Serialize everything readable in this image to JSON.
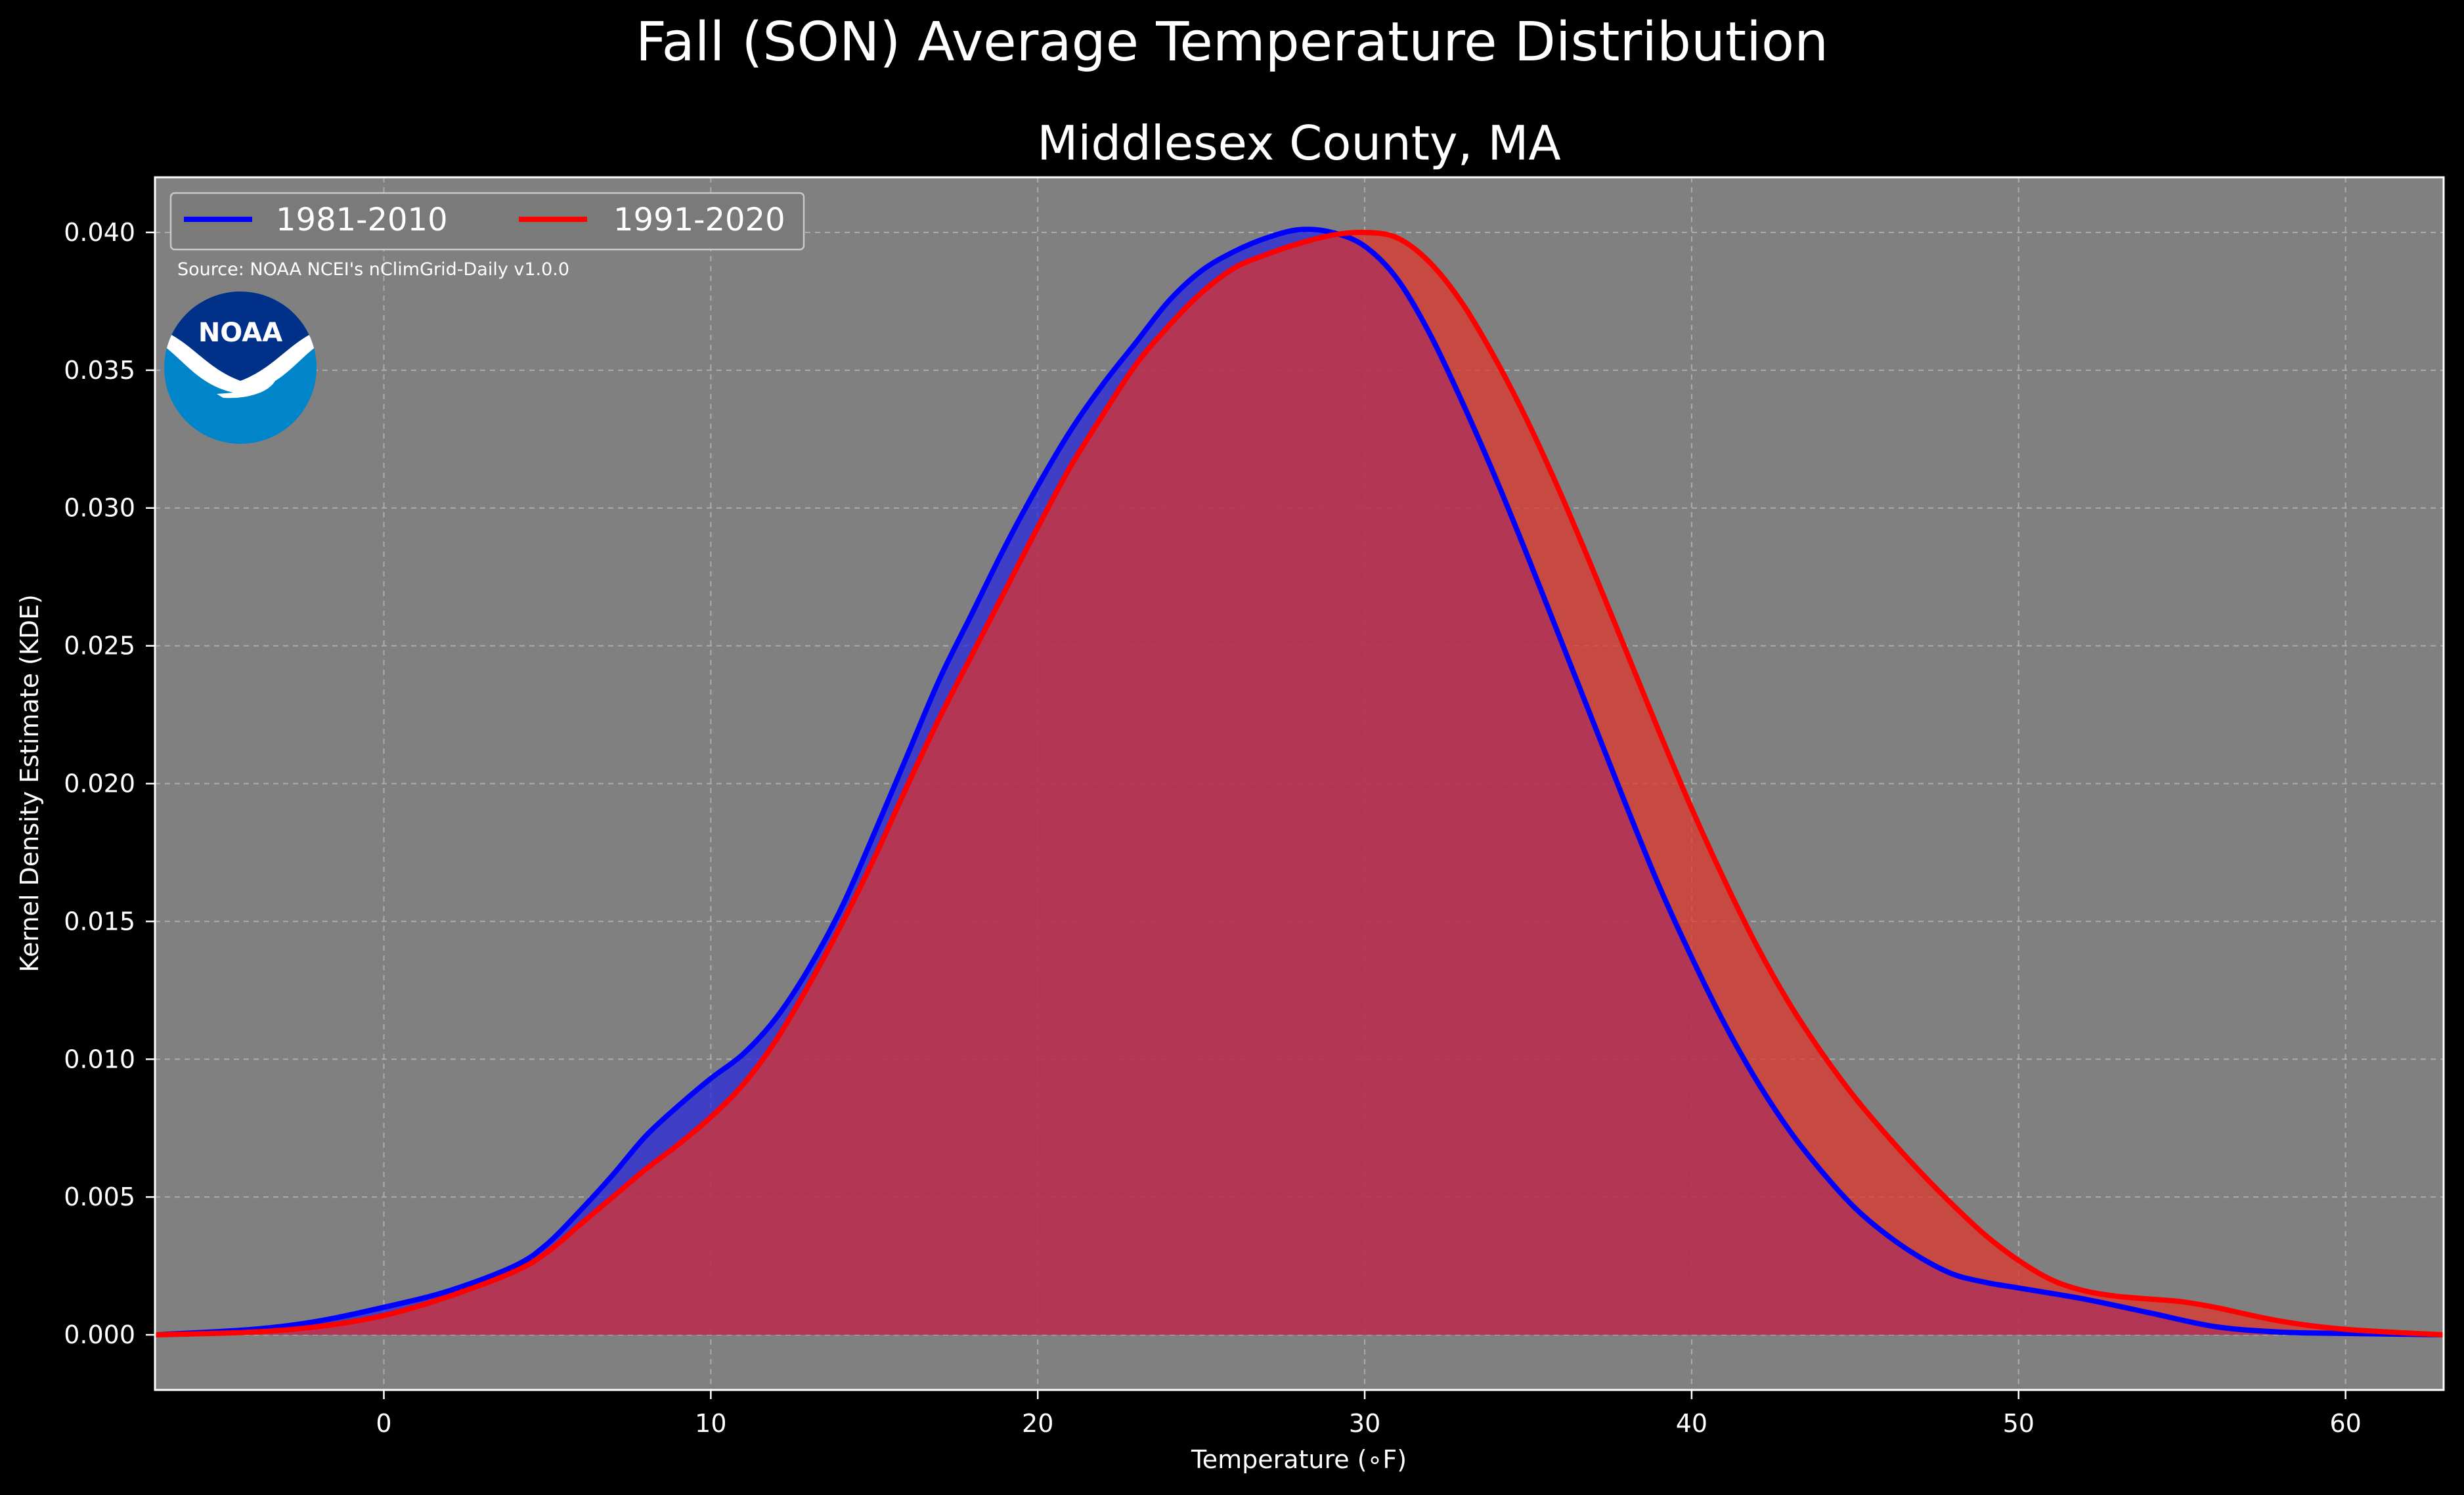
{
  "chart_data": {
    "type": "area",
    "title": "Fall (SON) Average Temperature Distribution",
    "subtitle": "Middlesex County, MA",
    "xlabel": "Temperature (∘F)",
    "ylabel": "Kernel Density Estimate (KDE)",
    "xlim": [
      -7,
      63
    ],
    "ylim": [
      -0.002,
      0.042
    ],
    "xticks": [
      0,
      10,
      20,
      30,
      40,
      50,
      60
    ],
    "yticks": [
      0.0,
      0.005,
      0.01,
      0.015,
      0.02,
      0.025,
      0.03,
      0.035,
      0.04
    ],
    "ytick_labels": [
      "0.000",
      "0.005",
      "0.010",
      "0.015",
      "0.020",
      "0.025",
      "0.030",
      "0.035",
      "0.040"
    ],
    "grid": true,
    "legend_position": "top-left",
    "annotation": "Source: NOAA NCEI's nClimGrid-Daily v1.0.0",
    "logo_text": "NOAA",
    "series": [
      {
        "name": "1981-2010",
        "color": "#0000ff",
        "fill_color": "#2626e0",
        "points": [
          [
            -7,
            0.0
          ],
          [
            -4,
            0.0002
          ],
          [
            -2,
            0.0005
          ],
          [
            0,
            0.001
          ],
          [
            2,
            0.0016
          ],
          [
            4,
            0.0025
          ],
          [
            5,
            0.0033
          ],
          [
            6,
            0.0045
          ],
          [
            7,
            0.0058
          ],
          [
            8,
            0.0072
          ],
          [
            9,
            0.0083
          ],
          [
            10,
            0.0093
          ],
          [
            11,
            0.0102
          ],
          [
            12,
            0.0115
          ],
          [
            13,
            0.0133
          ],
          [
            14,
            0.0155
          ],
          [
            15,
            0.0182
          ],
          [
            16,
            0.021
          ],
          [
            17,
            0.0238
          ],
          [
            18,
            0.0262
          ],
          [
            19,
            0.0286
          ],
          [
            20,
            0.0308
          ],
          [
            21,
            0.0328
          ],
          [
            22,
            0.0345
          ],
          [
            23,
            0.036
          ],
          [
            24,
            0.0375
          ],
          [
            25,
            0.0386
          ],
          [
            26,
            0.0393
          ],
          [
            27,
            0.0398
          ],
          [
            28,
            0.0401
          ],
          [
            29,
            0.04
          ],
          [
            30,
            0.0395
          ],
          [
            31,
            0.0383
          ],
          [
            32,
            0.0363
          ],
          [
            33,
            0.0338
          ],
          [
            34,
            0.0311
          ],
          [
            35,
            0.0282
          ],
          [
            36,
            0.0252
          ],
          [
            37,
            0.0222
          ],
          [
            38,
            0.0192
          ],
          [
            39,
            0.0163
          ],
          [
            40,
            0.0137
          ],
          [
            41,
            0.0113
          ],
          [
            42,
            0.0092
          ],
          [
            43,
            0.0074
          ],
          [
            44,
            0.0059
          ],
          [
            45,
            0.0046
          ],
          [
            46,
            0.0036
          ],
          [
            47,
            0.0028
          ],
          [
            48,
            0.0022
          ],
          [
            49,
            0.0019
          ],
          [
            50,
            0.0017
          ],
          [
            52,
            0.0013
          ],
          [
            54,
            0.0008
          ],
          [
            56,
            0.0003
          ],
          [
            58,
            0.0001
          ],
          [
            60,
            5e-05
          ],
          [
            63,
            0.0
          ]
        ]
      },
      {
        "name": "1991-2020",
        "color": "#ff0000",
        "fill_color": "#e0332a",
        "points": [
          [
            -7,
            0.0
          ],
          [
            -4,
            0.0001
          ],
          [
            -2,
            0.0003
          ],
          [
            0,
            0.0007
          ],
          [
            2,
            0.0014
          ],
          [
            4,
            0.0023
          ],
          [
            5,
            0.003
          ],
          [
            6,
            0.004
          ],
          [
            7,
            0.005
          ],
          [
            8,
            0.006
          ],
          [
            9,
            0.0069
          ],
          [
            10,
            0.0079
          ],
          [
            11,
            0.0091
          ],
          [
            12,
            0.0107
          ],
          [
            13,
            0.0127
          ],
          [
            14,
            0.0149
          ],
          [
            15,
            0.0173
          ],
          [
            16,
            0.0199
          ],
          [
            17,
            0.0224
          ],
          [
            18,
            0.0247
          ],
          [
            19,
            0.027
          ],
          [
            20,
            0.0293
          ],
          [
            21,
            0.0315
          ],
          [
            22,
            0.0334
          ],
          [
            23,
            0.0352
          ],
          [
            24,
            0.0366
          ],
          [
            25,
            0.0378
          ],
          [
            26,
            0.0387
          ],
          [
            27,
            0.0392
          ],
          [
            28,
            0.0396
          ],
          [
            29,
            0.0399
          ],
          [
            30,
            0.04
          ],
          [
            31,
            0.0398
          ],
          [
            32,
            0.0389
          ],
          [
            33,
            0.0374
          ],
          [
            34,
            0.0354
          ],
          [
            35,
            0.0331
          ],
          [
            36,
            0.0305
          ],
          [
            37,
            0.0277
          ],
          [
            38,
            0.0248
          ],
          [
            39,
            0.0219
          ],
          [
            40,
            0.0191
          ],
          [
            41,
            0.0165
          ],
          [
            42,
            0.0141
          ],
          [
            43,
            0.012
          ],
          [
            44,
            0.0102
          ],
          [
            45,
            0.0086
          ],
          [
            46,
            0.0072
          ],
          [
            47,
            0.0059
          ],
          [
            48,
            0.0047
          ],
          [
            49,
            0.0036
          ],
          [
            50,
            0.0027
          ],
          [
            51,
            0.002
          ],
          [
            52,
            0.0016
          ],
          [
            53,
            0.0014
          ],
          [
            54,
            0.0013
          ],
          [
            55,
            0.0012
          ],
          [
            56,
            0.001
          ],
          [
            58,
            0.0005
          ],
          [
            60,
            0.0002
          ],
          [
            63,
            0.0
          ]
        ]
      }
    ]
  }
}
